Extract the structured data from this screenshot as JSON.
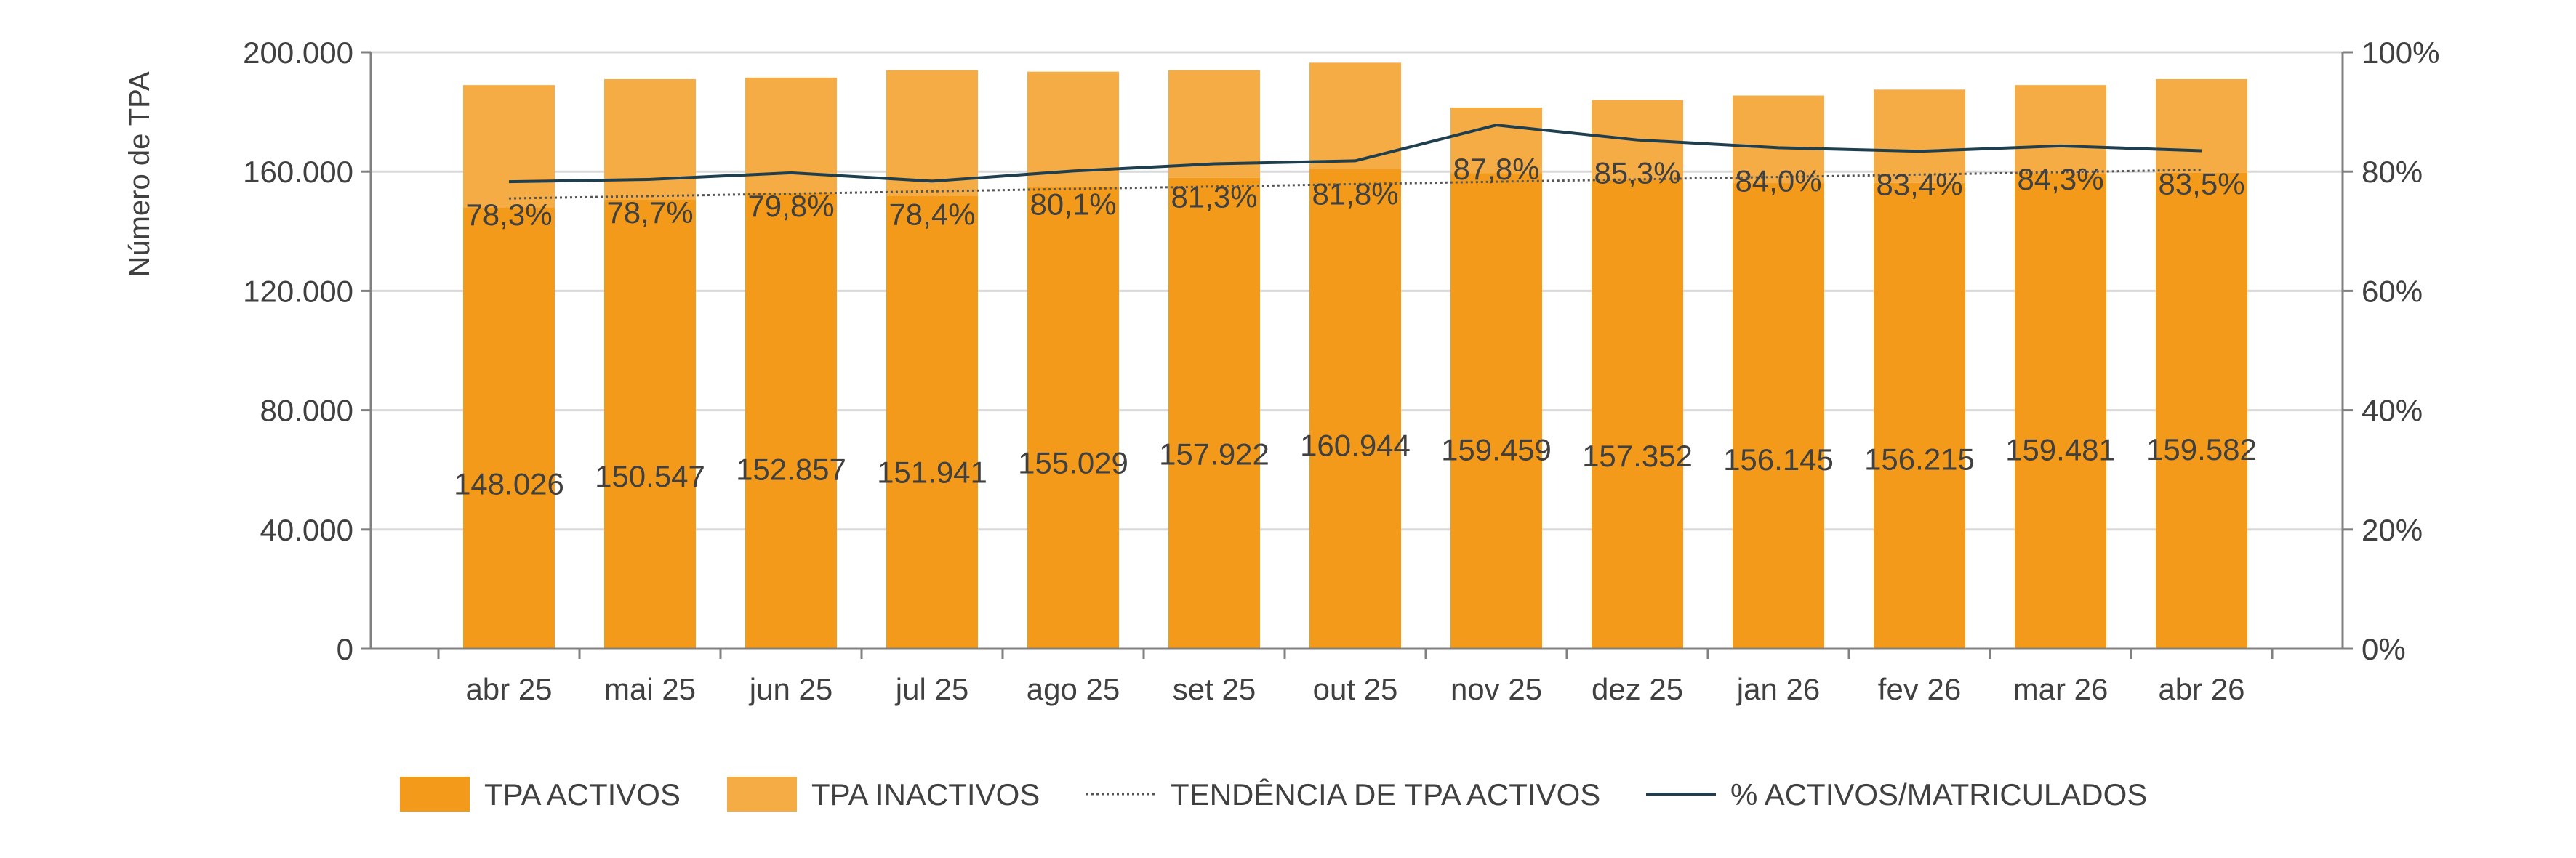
{
  "chart_data": {
    "type": "bar",
    "categories": [
      "abr 25",
      "mai 25",
      "jun 25",
      "jul 25",
      "ago 25",
      "set 25",
      "out 25",
      "nov 25",
      "dez 25",
      "jan 26",
      "fev 26",
      "mar 26",
      "abr 26"
    ],
    "ylabel": "Número de TPA",
    "ylim": [
      0,
      200000
    ],
    "y_ticks": [
      "0",
      "40.000",
      "80.000",
      "120.000",
      "160.000",
      "200.000"
    ],
    "y2lim": [
      0,
      100
    ],
    "y2_ticks": [
      "0%",
      "20%",
      "40%",
      "60%",
      "80%",
      "100%"
    ],
    "legend_position": "bottom",
    "grid": true,
    "series": [
      {
        "name": "TPA ACTIVOS",
        "kind": "bar",
        "color": "#F39A1A",
        "values": [
          148026,
          150547,
          152857,
          151941,
          155029,
          157922,
          160944,
          159459,
          157352,
          156145,
          156215,
          159481,
          159582
        ],
        "labels": [
          "148.026",
          "150.547",
          "152.857",
          "151.941",
          "155.029",
          "157.922",
          "160.944",
          "159.459",
          "157.352",
          "156.145",
          "156.215",
          "159.481",
          "159.582"
        ]
      },
      {
        "name": "TPA INACTIVOS",
        "kind": "bar",
        "color": "#F5AC45",
        "values": [
          40974,
          40453,
          38643,
          42059,
          38471,
          36078,
          35556,
          22041,
          26648,
          29355,
          31285,
          29519,
          31418
        ]
      },
      {
        "name": "TENDÊNCIA DE TPA ACTIVOS",
        "kind": "dotted-line",
        "color": "#555555",
        "values": [
          75.5,
          75.9,
          76.3,
          76.7,
          77.1,
          77.5,
          77.9,
          78.3,
          78.7,
          79.1,
          79.5,
          79.9,
          80.3
        ]
      },
      {
        "name": "% ACTIVOS/MATRICULADOS",
        "kind": "line",
        "axis": "right",
        "color": "#1F3F4F",
        "values": [
          78.3,
          78.7,
          79.8,
          78.4,
          80.1,
          81.3,
          81.8,
          87.8,
          85.3,
          84.0,
          83.4,
          84.3,
          83.5
        ],
        "labels": [
          "78,3%",
          "78,7%",
          "79,8%",
          "78,4%",
          "80,1%",
          "81,3%",
          "81,8%",
          "87,8%",
          "85,3%",
          "84,0%",
          "83,4%",
          "84,3%",
          "83,5%"
        ]
      }
    ]
  }
}
